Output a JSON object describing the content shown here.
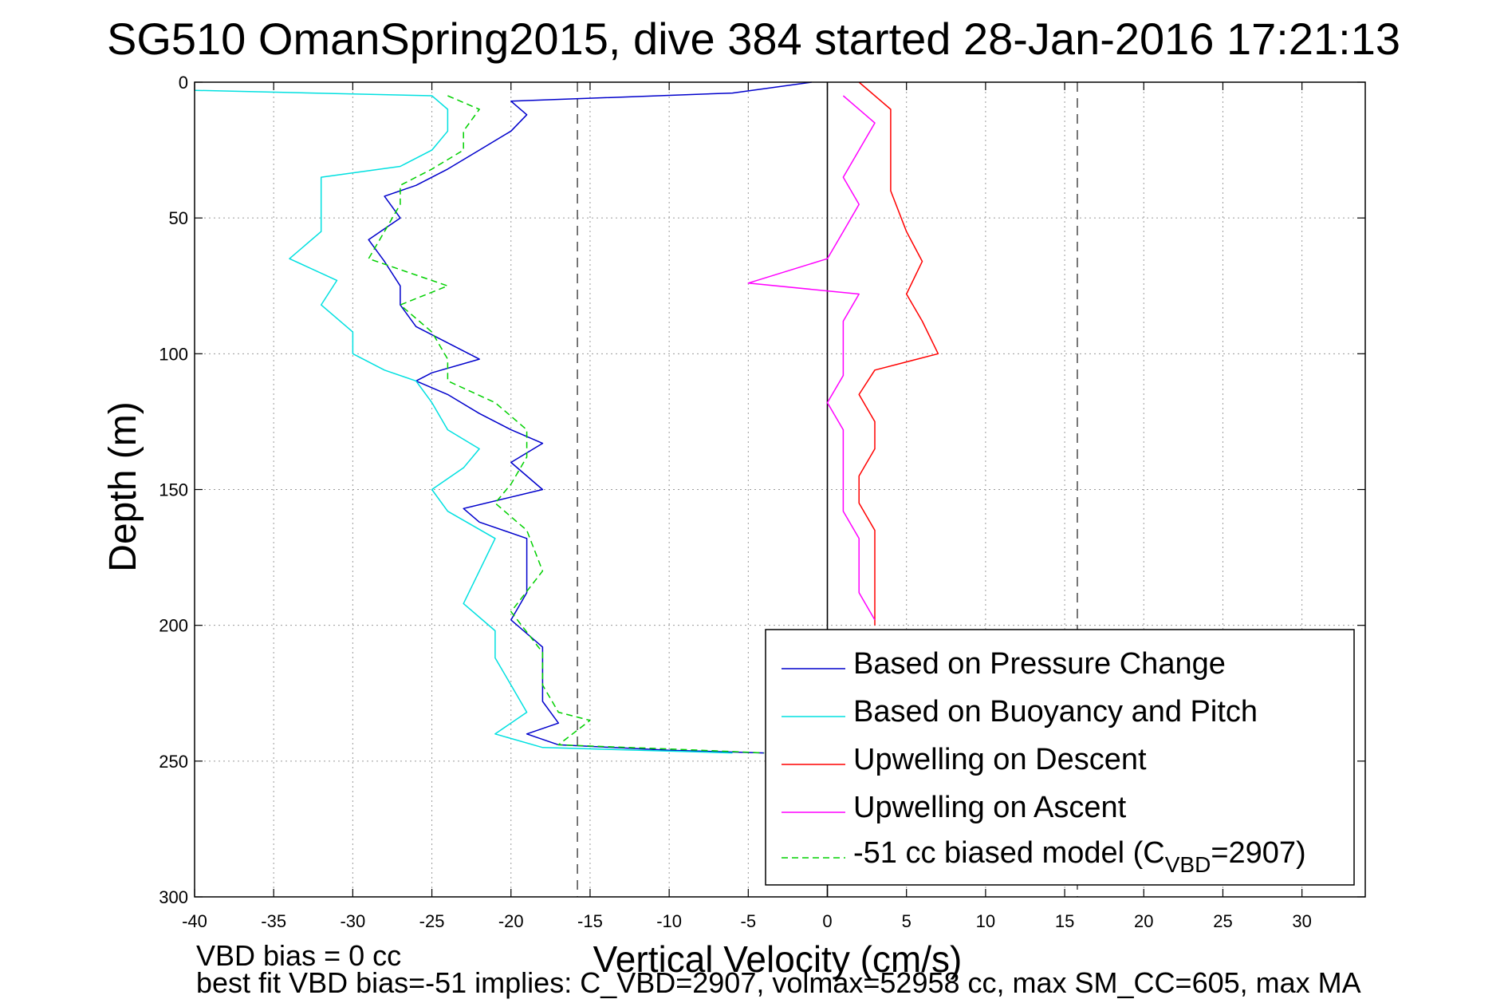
{
  "chart_data": {
    "type": "line",
    "title": "SG510 OmanSpring2015, dive 384 started 28-Jan-2016 17:21:13",
    "xlabel": "Vertical Velocity (cm/s)",
    "ylabel": "Depth (m)",
    "xlim": [
      -40,
      34
    ],
    "ylim": [
      0,
      300
    ],
    "y_reversed": true,
    "grid": true,
    "x_ticks": [
      -40,
      -35,
      -30,
      -25,
      -20,
      -15,
      -10,
      -5,
      0,
      5,
      10,
      15,
      20,
      25,
      30
    ],
    "y_ticks": [
      0,
      50,
      100,
      150,
      200,
      250,
      300
    ],
    "reference_lines": [
      {
        "x": -15.8,
        "style": "dashed",
        "color": "#555555"
      },
      {
        "x": 0,
        "style": "solid",
        "color": "#000000"
      },
      {
        "x": 15.8,
        "style": "dashed",
        "color": "#555555"
      }
    ],
    "legend_position": "bottom-right",
    "footnotes": [
      "VBD bias = 0 cc",
      "best fit VBD bias=-51 implies: C_VBD=2907, volmax=52958 cc, max SM_CC=605, max MA"
    ],
    "series": [
      {
        "name": "Based on Pressure Change",
        "color": "#0000cc",
        "dash": false,
        "points": [
          [
            -1,
            0
          ],
          [
            -6,
            4
          ],
          [
            -20,
            7
          ],
          [
            -19,
            12
          ],
          [
            -20,
            18
          ],
          [
            -22,
            25
          ],
          [
            -24,
            32
          ],
          [
            -26,
            38
          ],
          [
            -28,
            42
          ],
          [
            -27,
            50
          ],
          [
            -29,
            58
          ],
          [
            -28,
            66
          ],
          [
            -27,
            75
          ],
          [
            -27,
            82
          ],
          [
            -26,
            90
          ],
          [
            -24,
            96
          ],
          [
            -22,
            102
          ],
          [
            -25,
            107
          ],
          [
            -26,
            110
          ],
          [
            -24,
            115
          ],
          [
            -22,
            122
          ],
          [
            -20,
            128
          ],
          [
            -18,
            133
          ],
          [
            -20,
            140
          ],
          [
            -18,
            150
          ],
          [
            -23,
            157
          ],
          [
            -22,
            162
          ],
          [
            -19,
            168
          ],
          [
            -19,
            178
          ],
          [
            -19,
            188
          ],
          [
            -20,
            198
          ],
          [
            -18,
            208
          ],
          [
            -18,
            218
          ],
          [
            -18,
            228
          ],
          [
            -17,
            236
          ],
          [
            -19,
            240
          ],
          [
            -17,
            244
          ],
          [
            -10,
            246
          ],
          [
            -4,
            247
          ]
        ]
      },
      {
        "name": "Based on Buoyancy and Pitch",
        "color": "#00e0e0",
        "dash": false,
        "points": [
          [
            -40,
            3
          ],
          [
            -25,
            5
          ],
          [
            -24,
            10
          ],
          [
            -24,
            18
          ],
          [
            -25,
            25
          ],
          [
            -27,
            31
          ],
          [
            -32,
            35
          ],
          [
            -32,
            45
          ],
          [
            -32,
            55
          ],
          [
            -34,
            65
          ],
          [
            -31,
            73
          ],
          [
            -32,
            82
          ],
          [
            -30,
            92
          ],
          [
            -30,
            100
          ],
          [
            -28,
            106
          ],
          [
            -26,
            110
          ],
          [
            -25,
            118
          ],
          [
            -24,
            128
          ],
          [
            -22,
            135
          ],
          [
            -23,
            142
          ],
          [
            -25,
            150
          ],
          [
            -24,
            158
          ],
          [
            -21,
            168
          ],
          [
            -22,
            180
          ],
          [
            -23,
            192
          ],
          [
            -21,
            202
          ],
          [
            -21,
            212
          ],
          [
            -20,
            222
          ],
          [
            -19,
            232
          ],
          [
            -21,
            240
          ],
          [
            -18,
            245
          ],
          [
            -6,
            247
          ]
        ]
      },
      {
        "name": "Upwelling on Descent",
        "color": "#ff0000",
        "dash": false,
        "points": [
          [
            2,
            0
          ],
          [
            4,
            10
          ],
          [
            4,
            25
          ],
          [
            4,
            40
          ],
          [
            5,
            55
          ],
          [
            6,
            66
          ],
          [
            5,
            78
          ],
          [
            6,
            88
          ],
          [
            7,
            100
          ],
          [
            3,
            106
          ],
          [
            2,
            115
          ],
          [
            3,
            125
          ],
          [
            3,
            135
          ],
          [
            2,
            145
          ],
          [
            2,
            155
          ],
          [
            3,
            165
          ],
          [
            3,
            175
          ],
          [
            3,
            185
          ],
          [
            3,
            195
          ],
          [
            3,
            200
          ]
        ]
      },
      {
        "name": "Upwelling on Ascent",
        "color": "#ff00ff",
        "dash": false,
        "points": [
          [
            1,
            5
          ],
          [
            3,
            15
          ],
          [
            2,
            25
          ],
          [
            1,
            35
          ],
          [
            2,
            45
          ],
          [
            1,
            55
          ],
          [
            0,
            65
          ],
          [
            -5,
            74
          ],
          [
            2,
            78
          ],
          [
            1,
            88
          ],
          [
            1,
            98
          ],
          [
            1,
            108
          ],
          [
            0,
            118
          ],
          [
            1,
            128
          ],
          [
            1,
            138
          ],
          [
            1,
            148
          ],
          [
            1,
            158
          ],
          [
            2,
            168
          ],
          [
            2,
            178
          ],
          [
            2,
            188
          ],
          [
            3,
            198
          ]
        ]
      },
      {
        "name": "-51 cc biased model (C_VBD=2907)",
        "color": "#00d000",
        "dash": true,
        "points": [
          [
            -24,
            5
          ],
          [
            -22,
            10
          ],
          [
            -23,
            18
          ],
          [
            -23,
            25
          ],
          [
            -25,
            32
          ],
          [
            -27,
            38
          ],
          [
            -27,
            45
          ],
          [
            -28,
            55
          ],
          [
            -29,
            65
          ],
          [
            -24,
            75
          ],
          [
            -27,
            82
          ],
          [
            -25,
            92
          ],
          [
            -24,
            102
          ],
          [
            -24,
            110
          ],
          [
            -21,
            118
          ],
          [
            -19,
            128
          ],
          [
            -19,
            138
          ],
          [
            -20,
            148
          ],
          [
            -21,
            155
          ],
          [
            -19,
            165
          ],
          [
            -18,
            180
          ],
          [
            -20,
            195
          ],
          [
            -18,
            210
          ],
          [
            -18,
            222
          ],
          [
            -17,
            232
          ],
          [
            -15,
            235
          ],
          [
            -17,
            244
          ],
          [
            -8,
            246
          ],
          [
            -4,
            247
          ]
        ]
      }
    ]
  }
}
